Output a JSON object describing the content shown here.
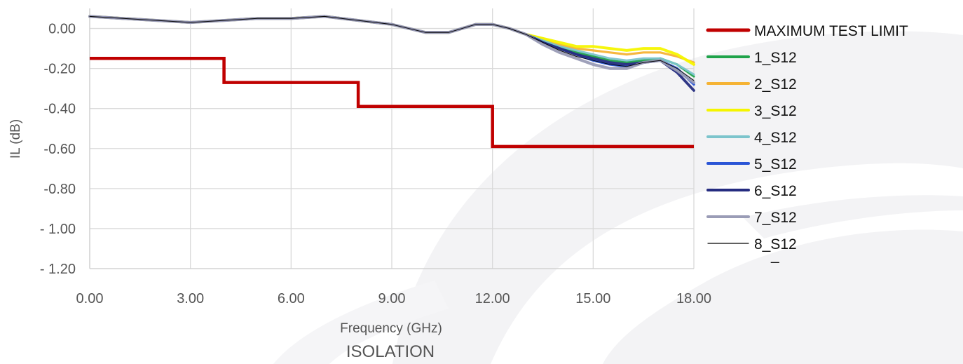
{
  "chart_data": {
    "type": "line",
    "title": "ISOLATION",
    "xlabel": "Frequency (GHz)",
    "ylabel": "IL (dB)",
    "xlim": [
      0,
      18
    ],
    "ylim": [
      -1.2,
      0.1
    ],
    "x_ticks": [
      "0.00",
      "3.00",
      "6.00",
      "9.00",
      "12.00",
      "15.00",
      "18.00"
    ],
    "y_ticks": [
      "0.00",
      "-0.20",
      "-0.40",
      "-0.60",
      "-0.80",
      "- 1.00",
      "- 1.20"
    ],
    "grid": true,
    "legend_position": "right",
    "limit": {
      "name": "MAXIMUM TEST LIMIT",
      "color": "#c00000",
      "x": [
        0,
        4,
        4,
        8,
        8,
        12,
        12,
        18
      ],
      "y": [
        -0.15,
        -0.15,
        -0.27,
        -0.27,
        -0.39,
        -0.39,
        -0.59,
        -0.59
      ]
    },
    "x": [
      0,
      1,
      2,
      3,
      4,
      5,
      6,
      7,
      8,
      9,
      10,
      10.7,
      11.5,
      12,
      12.5,
      13,
      13.5,
      14,
      14.5,
      15,
      15.5,
      16,
      16.5,
      17,
      17.5,
      18
    ],
    "series": [
      {
        "name": "1_S12",
        "color": "#1fa34a",
        "values": [
          0.06,
          0.05,
          0.04,
          0.03,
          0.04,
          0.05,
          0.05,
          0.06,
          0.04,
          0.02,
          -0.02,
          -0.02,
          0.02,
          0.02,
          0.0,
          -0.03,
          -0.06,
          -0.09,
          -0.12,
          -0.14,
          -0.16,
          -0.17,
          -0.16,
          -0.15,
          -0.18,
          -0.24
        ]
      },
      {
        "name": "2_S12",
        "color": "#f5b335",
        "values": [
          0.06,
          0.05,
          0.04,
          0.03,
          0.04,
          0.05,
          0.05,
          0.06,
          0.04,
          0.02,
          -0.02,
          -0.02,
          0.02,
          0.02,
          0.0,
          -0.03,
          -0.05,
          -0.08,
          -0.1,
          -0.11,
          -0.12,
          -0.13,
          -0.12,
          -0.12,
          -0.14,
          -0.17
        ]
      },
      {
        "name": "3_S12",
        "color": "#f5f500",
        "values": [
          0.06,
          0.05,
          0.04,
          0.03,
          0.04,
          0.05,
          0.05,
          0.06,
          0.04,
          0.02,
          -0.02,
          -0.02,
          0.02,
          0.02,
          0.0,
          -0.03,
          -0.05,
          -0.07,
          -0.09,
          -0.09,
          -0.1,
          -0.11,
          -0.1,
          -0.1,
          -0.13,
          -0.18
        ]
      },
      {
        "name": "4_S12",
        "color": "#7cc4cc",
        "values": [
          0.06,
          0.05,
          0.04,
          0.03,
          0.04,
          0.05,
          0.05,
          0.06,
          0.04,
          0.02,
          -0.02,
          -0.02,
          0.02,
          0.02,
          0.0,
          -0.03,
          -0.06,
          -0.09,
          -0.11,
          -0.13,
          -0.15,
          -0.16,
          -0.15,
          -0.15,
          -0.18,
          -0.23
        ]
      },
      {
        "name": "5_S12",
        "color": "#2a55d6",
        "values": [
          0.06,
          0.05,
          0.04,
          0.03,
          0.04,
          0.05,
          0.05,
          0.06,
          0.04,
          0.02,
          -0.02,
          -0.02,
          0.02,
          0.02,
          0.0,
          -0.03,
          -0.07,
          -0.1,
          -0.13,
          -0.16,
          -0.18,
          -0.19,
          -0.17,
          -0.16,
          -0.2,
          -0.28
        ]
      },
      {
        "name": "6_S12",
        "color": "#252c80",
        "values": [
          0.06,
          0.05,
          0.04,
          0.03,
          0.04,
          0.05,
          0.05,
          0.06,
          0.04,
          0.02,
          -0.02,
          -0.02,
          0.02,
          0.02,
          0.0,
          -0.03,
          -0.07,
          -0.1,
          -0.13,
          -0.15,
          -0.17,
          -0.18,
          -0.17,
          -0.16,
          -0.22,
          -0.31
        ]
      },
      {
        "name": "7_S12",
        "color": "#9a9cb6",
        "values": [
          0.06,
          0.05,
          0.04,
          0.03,
          0.04,
          0.05,
          0.05,
          0.06,
          0.04,
          0.02,
          -0.02,
          -0.02,
          0.02,
          0.02,
          0.0,
          -0.03,
          -0.08,
          -0.12,
          -0.15,
          -0.18,
          -0.2,
          -0.2,
          -0.17,
          -0.16,
          -0.21,
          -0.27
        ]
      },
      {
        "name": "8_S12",
        "color": "#000000",
        "values": [
          0.06,
          0.05,
          0.04,
          0.03,
          0.04,
          0.05,
          0.05,
          0.06,
          0.04,
          0.02,
          -0.02,
          -0.02,
          0.02,
          0.02,
          0.0,
          -0.03,
          -0.07,
          -0.11,
          -0.14,
          -0.16,
          -0.18,
          -0.19,
          -0.17,
          -0.16,
          -0.2,
          -0.26
        ]
      }
    ],
    "legend_extra": "_"
  },
  "colors": {
    "grid": "#d9d9d9",
    "watermark": "#f1f1f3"
  }
}
